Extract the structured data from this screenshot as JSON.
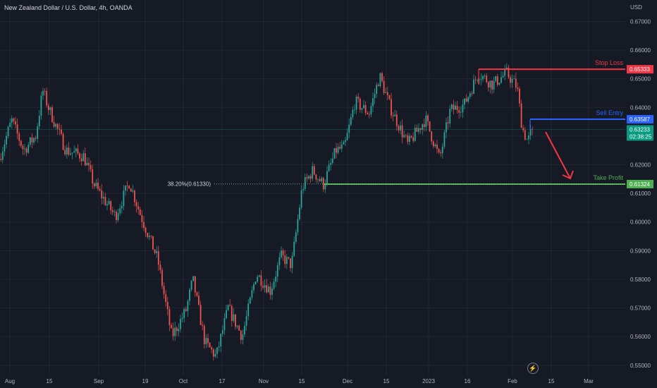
{
  "header": {
    "title": "New Zealand Dollar / U.S. Dollar, 4h, OANDA",
    "currency": "USD"
  },
  "chart_data": {
    "type": "candlestick",
    "symbol": "NZDUSD",
    "timeframe": "4h",
    "y_axis": {
      "ticks": [
        0.55,
        0.56,
        0.57,
        0.58,
        0.59,
        0.6,
        0.61,
        0.62,
        0.63,
        0.64,
        0.65,
        0.66,
        0.67
      ],
      "tick_labels": [
        "0.55000",
        "0.56000",
        "0.57000",
        "0.58000",
        "0.59000",
        "0.60000",
        "0.61000",
        "0.62000",
        "0.63000",
        "0.64000",
        "0.65000",
        "0.66000",
        "0.67000"
      ],
      "range": [
        0.5465,
        0.6775
      ]
    },
    "x_axis": {
      "ticks": [
        "Aug",
        "15",
        "Sep",
        "19",
        "Oct",
        "17",
        "Nov",
        "15",
        "Dec",
        "15",
        "2023",
        "16",
        "Feb",
        "15",
        "Mar"
      ]
    },
    "price_path": [
      {
        "t": 0,
        "price": 0.622
      },
      {
        "t": 18,
        "price": 0.6355
      },
      {
        "t": 35,
        "price": 0.625
      },
      {
        "t": 52,
        "price": 0.63
      },
      {
        "t": 62,
        "price": 0.646
      },
      {
        "t": 70,
        "price": 0.64
      },
      {
        "t": 95,
        "price": 0.625
      },
      {
        "t": 120,
        "price": 0.623
      },
      {
        "t": 135,
        "price": 0.613
      },
      {
        "t": 165,
        "price": 0.602
      },
      {
        "t": 185,
        "price": 0.614
      },
      {
        "t": 200,
        "price": 0.603
      },
      {
        "t": 225,
        "price": 0.587
      },
      {
        "t": 245,
        "price": 0.56
      },
      {
        "t": 265,
        "price": 0.569
      },
      {
        "t": 275,
        "price": 0.58
      },
      {
        "t": 292,
        "price": 0.558
      },
      {
        "t": 308,
        "price": 0.553
      },
      {
        "t": 325,
        "price": 0.57
      },
      {
        "t": 345,
        "price": 0.56
      },
      {
        "t": 365,
        "price": 0.582
      },
      {
        "t": 385,
        "price": 0.576
      },
      {
        "t": 400,
        "price": 0.588
      },
      {
        "t": 415,
        "price": 0.585
      },
      {
        "t": 430,
        "price": 0.612
      },
      {
        "t": 445,
        "price": 0.618
      },
      {
        "t": 460,
        "price": 0.613
      },
      {
        "t": 478,
        "price": 0.625
      },
      {
        "t": 490,
        "price": 0.626
      },
      {
        "t": 505,
        "price": 0.642
      },
      {
        "t": 525,
        "price": 0.638
      },
      {
        "t": 540,
        "price": 0.651
      },
      {
        "t": 555,
        "price": 0.64
      },
      {
        "t": 580,
        "price": 0.627
      },
      {
        "t": 605,
        "price": 0.636
      },
      {
        "t": 625,
        "price": 0.622
      },
      {
        "t": 640,
        "price": 0.639
      },
      {
        "t": 660,
        "price": 0.641
      },
      {
        "t": 680,
        "price": 0.652
      },
      {
        "t": 700,
        "price": 0.648
      },
      {
        "t": 720,
        "price": 0.652
      },
      {
        "t": 735,
        "price": 0.647
      },
      {
        "t": 742,
        "price": 0.633
      },
      {
        "t": 750,
        "price": 0.628
      },
      {
        "t": 756,
        "price": 0.6323
      }
    ],
    "fib_level": {
      "label": "38.20%(0.61330)",
      "value": 0.6133
    },
    "levels": {
      "stop_loss": {
        "label": "Stop Loss",
        "price_label": "0.65333",
        "value": 0.65333,
        "color": "#f23645"
      },
      "sell_entry": {
        "label": "Sell Entry",
        "price_label": "0.63587",
        "value": 0.63587,
        "color": "#2962ff"
      },
      "take_profit": {
        "label": "Take Profit",
        "price_label": "0.61324",
        "value": 0.61324,
        "color": "#4caf50"
      }
    },
    "current_price": {
      "price_label": "0.63233",
      "countdown": "02:38:25",
      "value": 0.63233,
      "color": "#089981"
    },
    "colors": {
      "background": "#161a25",
      "grid": "#232633",
      "up_candle": "#26a69a",
      "down_candle": "#ef5350",
      "axis_text": "#b2b5be",
      "arrow": "#f23645"
    },
    "grid": true
  }
}
